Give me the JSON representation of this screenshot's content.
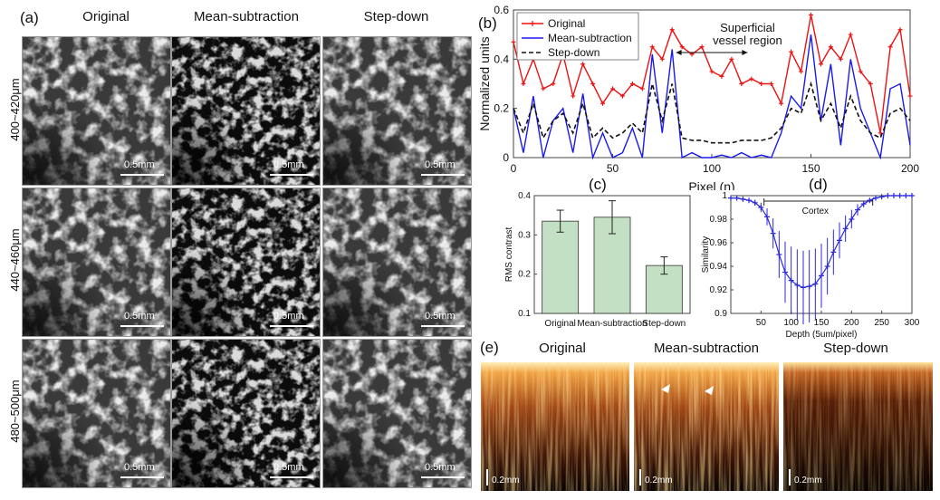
{
  "panel_a": {
    "letter": "(a)",
    "columns": [
      "Original",
      "Mean-subtraction",
      "Step-down"
    ],
    "rows": [
      "400~420μm",
      "440~460μm",
      "480~500μm"
    ],
    "scale_bar": "0.5mm"
  },
  "panel_b": {
    "letter": "(b)",
    "annotation_line1": "Superficial",
    "annotation_line2": "vessel  region"
  },
  "panel_c": {
    "letter": "(c)"
  },
  "panel_d": {
    "letter": "(d)"
  },
  "panel_e": {
    "letter": "(e)",
    "columns": [
      "Original",
      "Mean-subtraction",
      "Step-down"
    ],
    "scale_bar": "0.2mm"
  },
  "colors": {
    "original": "#ee1111",
    "mean_subtraction": "#1a1aee",
    "step_down": "#111111",
    "bar_fill": "#c4e0c4",
    "similarity": "#2a2ae0"
  },
  "chart_data": [
    {
      "id": "b",
      "type": "line",
      "xlabel": "Pixel (n)",
      "ylabel": "Normalized units",
      "xlim": [
        0,
        200
      ],
      "ylim": [
        0,
        0.6
      ],
      "xticks": [
        0,
        50,
        100,
        150,
        200
      ],
      "yticks": [
        0,
        0.2,
        0.4,
        0.6
      ],
      "legend": [
        "Original",
        "Mean-subtraction",
        "Step-down"
      ],
      "series": [
        {
          "name": "Original",
          "x": [
            0,
            5,
            10,
            15,
            20,
            25,
            30,
            35,
            40,
            45,
            50,
            55,
            60,
            65,
            70,
            75,
            80,
            85,
            90,
            95,
            100,
            105,
            110,
            115,
            120,
            125,
            130,
            135,
            140,
            145,
            150,
            155,
            160,
            165,
            170,
            175,
            180,
            185,
            190,
            195,
            200
          ],
          "values": [
            0.47,
            0.3,
            0.4,
            0.28,
            0.3,
            0.42,
            0.25,
            0.38,
            0.3,
            0.22,
            0.28,
            0.25,
            0.3,
            0.28,
            0.45,
            0.4,
            0.52,
            0.45,
            0.42,
            0.45,
            0.35,
            0.33,
            0.4,
            0.3,
            0.32,
            0.3,
            0.3,
            0.22,
            0.43,
            0.35,
            0.58,
            0.38,
            0.45,
            0.4,
            0.5,
            0.35,
            0.3,
            0.1,
            0.45,
            0.52,
            0.25
          ]
        },
        {
          "name": "Mean-subtraction",
          "x": [
            0,
            5,
            10,
            15,
            20,
            25,
            30,
            35,
            40,
            45,
            50,
            55,
            60,
            65,
            70,
            75,
            80,
            85,
            90,
            95,
            100,
            105,
            110,
            115,
            120,
            125,
            130,
            135,
            140,
            145,
            150,
            155,
            160,
            165,
            170,
            175,
            180,
            185,
            190,
            195,
            200
          ],
          "values": [
            0.2,
            0.02,
            0.25,
            0.0,
            0.15,
            0.2,
            0.02,
            0.26,
            0.0,
            0.1,
            0.0,
            0.02,
            0.12,
            0.0,
            0.42,
            0.1,
            0.44,
            0.0,
            0.02,
            0.0,
            0.0,
            0.01,
            0.0,
            0.02,
            0.0,
            0.01,
            0.0,
            0.1,
            0.25,
            0.2,
            0.5,
            0.15,
            0.38,
            0.05,
            0.4,
            0.2,
            0.1,
            0.0,
            0.28,
            0.3,
            0.05
          ]
        },
        {
          "name": "Step-down",
          "x": [
            0,
            5,
            10,
            15,
            20,
            25,
            30,
            35,
            40,
            45,
            50,
            55,
            60,
            65,
            70,
            75,
            80,
            85,
            90,
            95,
            100,
            105,
            110,
            115,
            120,
            125,
            130,
            135,
            140,
            145,
            150,
            155,
            160,
            165,
            170,
            175,
            180,
            185,
            190,
            195,
            200
          ],
          "values": [
            0.2,
            0.1,
            0.22,
            0.08,
            0.15,
            0.18,
            0.1,
            0.22,
            0.08,
            0.12,
            0.08,
            0.1,
            0.14,
            0.1,
            0.3,
            0.15,
            0.3,
            0.08,
            0.07,
            0.07,
            0.06,
            0.06,
            0.06,
            0.07,
            0.07,
            0.07,
            0.08,
            0.12,
            0.2,
            0.18,
            0.3,
            0.15,
            0.22,
            0.12,
            0.25,
            0.15,
            0.1,
            0.08,
            0.18,
            0.2,
            0.15
          ]
        }
      ]
    },
    {
      "id": "c",
      "type": "bar",
      "ylabel": "RMS contrast",
      "categories": [
        "Original",
        "Mean-subtraction",
        "Step-down"
      ],
      "values": [
        0.335,
        0.345,
        0.222
      ],
      "errors": [
        0.028,
        0.042,
        0.022
      ],
      "ylim": [
        0.1,
        0.4
      ],
      "yticks": [
        0.1,
        0.2,
        0.3,
        0.4
      ]
    },
    {
      "id": "d",
      "type": "scatter",
      "xlabel": "Depth (5um/pixel)",
      "ylabel": "Similarity",
      "xlim": [
        0,
        300
      ],
      "ylim": [
        0.9,
        1.0
      ],
      "xticks": [
        50,
        100,
        150,
        200,
        250,
        300
      ],
      "yticks": [
        0.9,
        0.92,
        0.94,
        0.96,
        0.98,
        1
      ],
      "annotation": "Cortex",
      "x": [
        0,
        10,
        20,
        30,
        40,
        50,
        60,
        70,
        80,
        90,
        100,
        110,
        120,
        130,
        140,
        150,
        160,
        170,
        180,
        190,
        200,
        210,
        220,
        230,
        240,
        250,
        260,
        270,
        280,
        290,
        300
      ],
      "values": [
        0.998,
        0.998,
        0.997,
        0.996,
        0.994,
        0.99,
        0.982,
        0.968,
        0.95,
        0.935,
        0.928,
        0.924,
        0.922,
        0.923,
        0.925,
        0.932,
        0.94,
        0.952,
        0.962,
        0.972,
        0.98,
        0.988,
        0.993,
        0.996,
        0.998,
        0.999,
        1.0,
        1.0,
        1.0,
        1.0,
        1.0
      ]
    }
  ]
}
